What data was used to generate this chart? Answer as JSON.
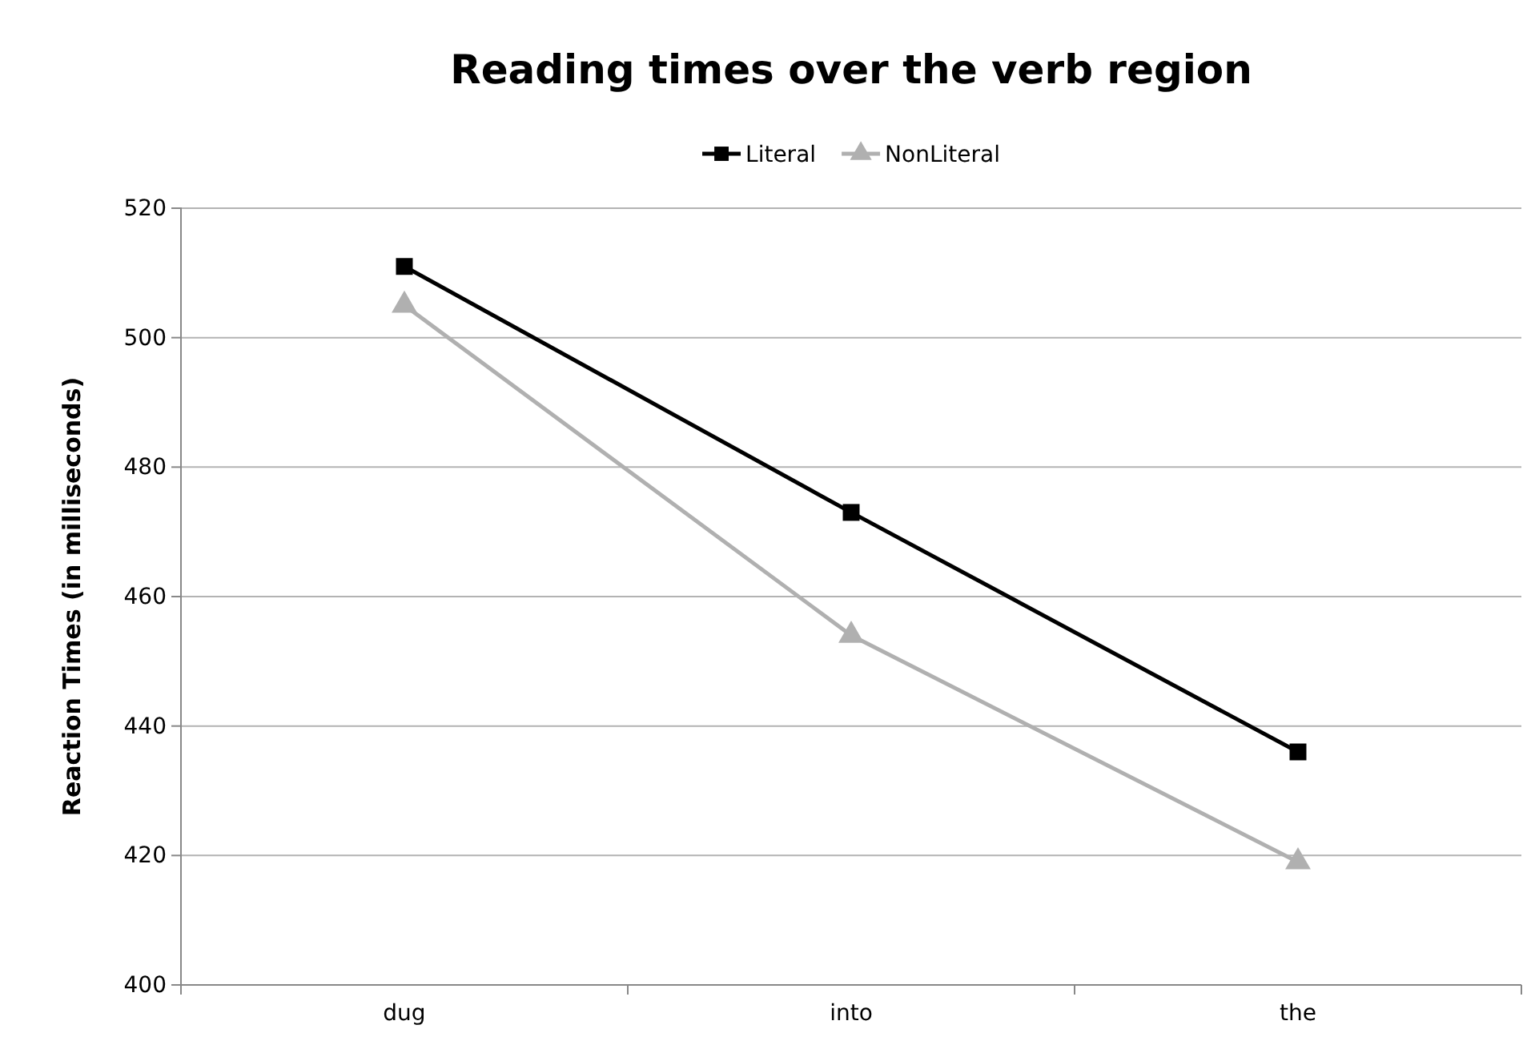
{
  "chart_data": {
    "type": "line",
    "title": "Reading times over the verb region",
    "ylabel": "Reaction Times (in milliseconds)",
    "categories": [
      "dug",
      "into",
      "the"
    ],
    "series": [
      {
        "name": "Literal",
        "color": "#000000",
        "marker": "square",
        "values": [
          511,
          473,
          436
        ]
      },
      {
        "name": "NonLiteral",
        "color": "#b0b0b0",
        "marker": "triangle",
        "values": [
          505,
          454,
          419
        ]
      }
    ],
    "ylim": [
      400,
      520
    ],
    "yticks": [
      400,
      420,
      440,
      460,
      480,
      500,
      520
    ],
    "grid": "y",
    "legend": "top"
  }
}
